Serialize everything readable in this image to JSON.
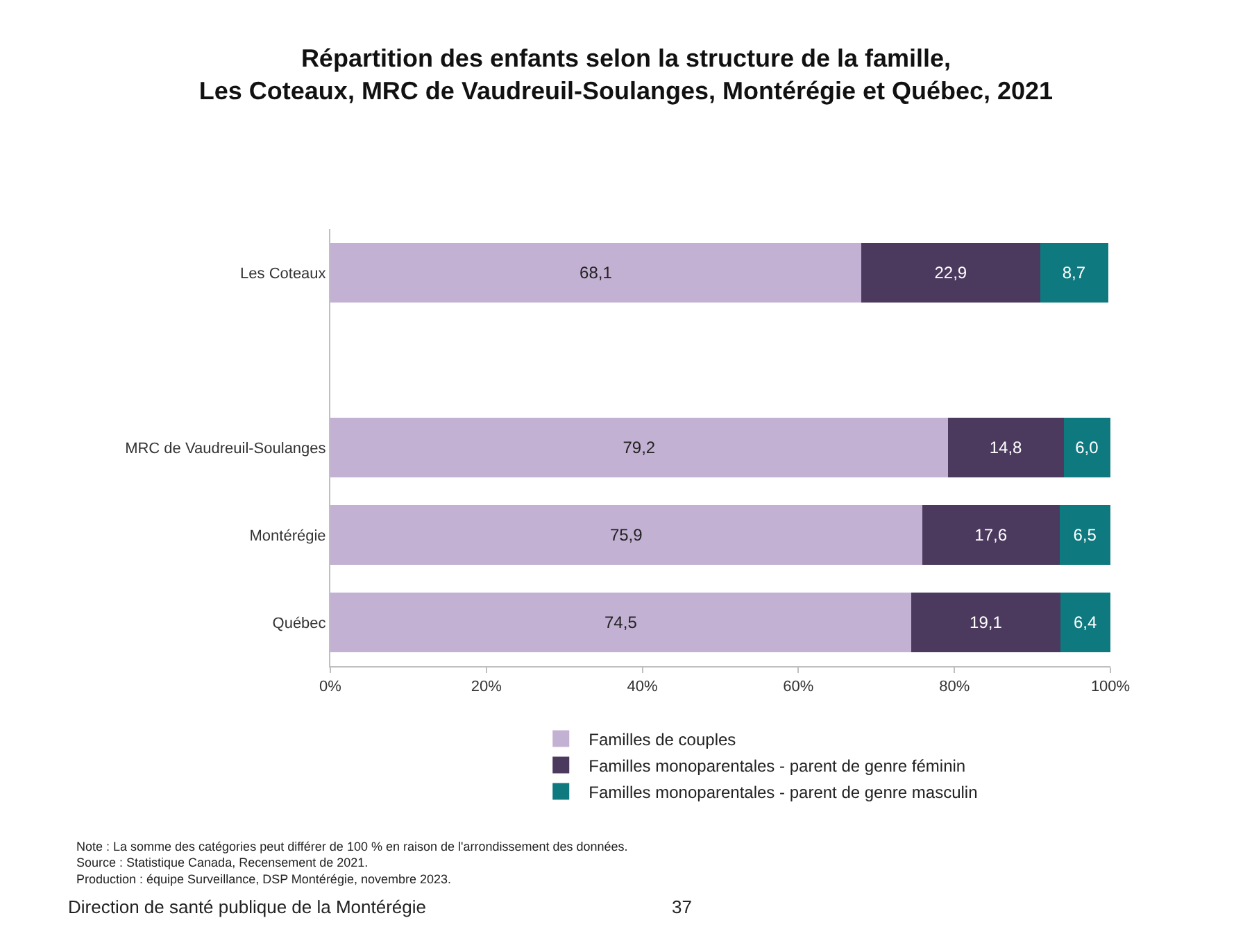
{
  "chart_data": {
    "type": "bar",
    "orientation": "horizontal",
    "stacked": true,
    "title": "Répartition des enfants selon la structure de la famille,\nLes Coteaux, MRC de Vaudreuil-Soulanges, Montérégie et Québec, 2021",
    "categories": [
      "Les Coteaux",
      null,
      "MRC de Vaudreuil-Soulanges",
      "Montérégie",
      "Québec"
    ],
    "series": [
      {
        "name": "Familles de couples",
        "color": "#c3b1d3",
        "values": [
          68.1,
          null,
          79.2,
          75.9,
          74.5
        ],
        "value_labels": [
          "68,1",
          null,
          "79,2",
          "75,9",
          "74,5"
        ]
      },
      {
        "name": "Familles monoparentales - parent de genre féminin",
        "color": "#4b3a5e",
        "values": [
          22.9,
          null,
          14.8,
          17.6,
          19.1
        ],
        "value_labels": [
          "22,9",
          null,
          "14,8",
          "17,6",
          "19,1"
        ]
      },
      {
        "name": "Familles monoparentales - parent de genre masculin",
        "color": "#0e7a80",
        "values": [
          8.7,
          null,
          6.0,
          6.5,
          6.4
        ],
        "value_labels": [
          "8,7",
          null,
          "6,0",
          "6,5",
          "6,4"
        ]
      }
    ],
    "xlim": [
      0,
      100
    ],
    "xticks": [
      {
        "value": 0,
        "label": "0%"
      },
      {
        "value": 20,
        "label": "20%"
      },
      {
        "value": 40,
        "label": "40%"
      },
      {
        "value": 60,
        "label": "60%"
      },
      {
        "value": 80,
        "label": "80%"
      },
      {
        "value": 100,
        "label": "100%"
      }
    ],
    "legend": "bottom",
    "annotations": [
      "Note : La somme des catégories peut différer de 100 % en raison de l'arrondissement des données.\nSource : Statistique Canada, Recensement de 2021.\nProduction : équipe Surveillance, DSP Montérégie, novembre 2023.",
      "Direction de santé publique de la Montérégie",
      "37"
    ]
  }
}
